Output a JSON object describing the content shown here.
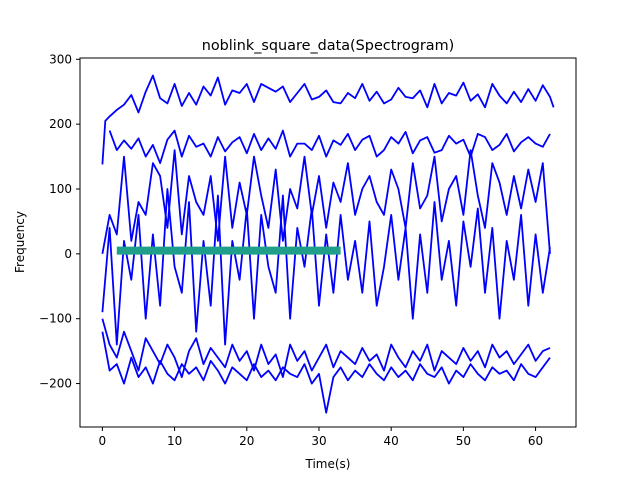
{
  "chart_data": {
    "type": "line",
    "title": "noblink_square_data(Spectrogram)",
    "xlabel": "Time(s)",
    "ylabel": "Frequency",
    "xlim": [
      -3.1,
      65.6
    ],
    "ylim": [
      -267,
      302
    ],
    "xticks": [
      0,
      10,
      20,
      30,
      40,
      50,
      60
    ],
    "yticks": [
      -200,
      -100,
      0,
      100,
      200,
      300
    ],
    "grid": false,
    "legend": "none",
    "series_colors": {
      "traces": "#0000ff",
      "band": "#1f9e89"
    },
    "series": [
      {
        "x": [
          0,
          0.4,
          1,
          2,
          3,
          4,
          5,
          6,
          7,
          8,
          9,
          10,
          11,
          12,
          13,
          14,
          15,
          16,
          17,
          18,
          19,
          20,
          21,
          22,
          23,
          24,
          25,
          26,
          27,
          28,
          29,
          30,
          31,
          32,
          33,
          34,
          35,
          36,
          37,
          38,
          39,
          40,
          41,
          42,
          43,
          44,
          45,
          46,
          47,
          48,
          49,
          50,
          51,
          52,
          53,
          54,
          55,
          56,
          57,
          58,
          59,
          60,
          61,
          62,
          62.5
        ],
        "values": [
          138,
          205,
          212,
          222,
          230,
          245,
          218,
          250,
          275,
          240,
          232,
          262,
          228,
          248,
          230,
          258,
          244,
          272,
          230,
          252,
          248,
          262,
          234,
          262,
          256,
          250,
          258,
          234,
          248,
          262,
          238,
          242,
          252,
          234,
          232,
          248,
          240,
          262,
          236,
          250,
          232,
          238,
          256,
          242,
          240,
          252,
          226,
          262,
          232,
          248,
          244,
          264,
          236,
          246,
          226,
          262,
          244,
          232,
          250,
          234,
          254,
          236,
          260,
          242,
          226
        ]
      },
      {
        "x": [
          1,
          2,
          3,
          4,
          5,
          6,
          7,
          8,
          9,
          10,
          11,
          12,
          13,
          14,
          15,
          16,
          17,
          18,
          19,
          20,
          21,
          22,
          23,
          24,
          25,
          26,
          27,
          28,
          29,
          30,
          31,
          32,
          33,
          34,
          35,
          36,
          37,
          38,
          39,
          40,
          41,
          42,
          43,
          44,
          45,
          46,
          47,
          48,
          49,
          50,
          51,
          52,
          53,
          54,
          55,
          56,
          57,
          58,
          59,
          60,
          61,
          62
        ],
        "values": [
          190,
          160,
          175,
          162,
          178,
          150,
          168,
          140,
          176,
          190,
          150,
          182,
          165,
          170,
          150,
          180,
          158,
          172,
          180,
          155,
          185,
          160,
          178,
          162,
          190,
          150,
          170,
          170,
          160,
          182,
          150,
          175,
          168,
          185,
          160,
          176,
          182,
          150,
          160,
          180,
          170,
          188,
          155,
          175,
          180,
          156,
          160,
          182,
          170,
          176,
          150,
          185,
          180,
          160,
          168,
          185,
          158,
          172,
          180,
          170,
          165,
          185
        ]
      },
      {
        "x": [
          0,
          1,
          2,
          3,
          4,
          5,
          6,
          7,
          8,
          9,
          10,
          11,
          12,
          13,
          14,
          15,
          16,
          17,
          18,
          19,
          20,
          21,
          22,
          23,
          24,
          25,
          26,
          27,
          28,
          29,
          30,
          31,
          32,
          33,
          34,
          35,
          36,
          37,
          38,
          39,
          40,
          41,
          42,
          43,
          44,
          45,
          46,
          47,
          48,
          49,
          50,
          51,
          52,
          53,
          54,
          55,
          56,
          57,
          58,
          59,
          60,
          61,
          62
        ],
        "values": [
          0,
          60,
          30,
          150,
          20,
          80,
          60,
          140,
          120,
          40,
          160,
          30,
          120,
          80,
          60,
          120,
          20,
          150,
          40,
          110,
          60,
          150,
          90,
          40,
          130,
          20,
          100,
          70,
          150,
          60,
          120,
          40,
          110,
          80,
          140,
          60,
          100,
          120,
          80,
          60,
          130,
          100,
          40,
          140,
          70,
          90,
          150,
          50,
          100,
          120,
          60,
          160,
          90,
          40,
          140,
          110,
          60,
          120,
          70,
          130,
          80,
          140,
          0
        ]
      },
      {
        "x": [
          0,
          1,
          2,
          3,
          4,
          5,
          6,
          7,
          8,
          9,
          10,
          11,
          12,
          13,
          14,
          15,
          16,
          17,
          18,
          19,
          20,
          21,
          22,
          23,
          24,
          25,
          26,
          27,
          28,
          29,
          30,
          31,
          32,
          33,
          34,
          35,
          36,
          37,
          38,
          39,
          40,
          41,
          42,
          43,
          44,
          45,
          46,
          47,
          48,
          49,
          50,
          51,
          52,
          53,
          54,
          55,
          56,
          57,
          58,
          59,
          60,
          61,
          62
        ],
        "values": [
          -90,
          40,
          -140,
          20,
          -40,
          60,
          -100,
          30,
          -80,
          100,
          -20,
          -60,
          80,
          -120,
          20,
          -80,
          90,
          -140,
          20,
          -40,
          70,
          -100,
          60,
          -20,
          -60,
          90,
          -100,
          40,
          -20,
          70,
          -80,
          30,
          -60,
          60,
          -40,
          20,
          -60,
          50,
          -80,
          -20,
          60,
          -40,
          40,
          -100,
          30,
          -60,
          80,
          -40,
          20,
          -80,
          50,
          -20,
          70,
          -60,
          40,
          -100,
          20,
          -40,
          60,
          -80,
          30,
          -60,
          10
        ]
      },
      {
        "x": [
          0,
          1,
          2,
          3,
          4,
          5,
          6,
          7,
          8,
          9,
          10,
          11,
          12,
          13,
          14,
          15,
          16,
          17,
          18,
          19,
          20,
          21,
          22,
          23,
          24,
          25,
          26,
          27,
          28,
          29,
          30,
          31,
          32,
          33,
          34,
          35,
          36,
          37,
          38,
          39,
          40,
          41,
          42,
          43,
          44,
          45,
          46,
          47,
          48,
          49,
          50,
          51,
          52,
          53,
          54,
          55,
          56,
          57,
          58,
          59,
          60,
          61,
          62
        ],
        "values": [
          -100,
          -140,
          -160,
          -120,
          -150,
          -180,
          -130,
          -150,
          -170,
          -140,
          -160,
          -190,
          -150,
          -130,
          -170,
          -145,
          -160,
          -175,
          -140,
          -165,
          -150,
          -180,
          -140,
          -170,
          -155,
          -190,
          -140,
          -165,
          -150,
          -180,
          -160,
          -140,
          -175,
          -150,
          -160,
          -170,
          -145,
          -165,
          -155,
          -180,
          -140,
          -160,
          -175,
          -150,
          -165,
          -140,
          -180,
          -150,
          -160,
          -170,
          -145,
          -165,
          -150,
          -175,
          -140,
          -160,
          -150,
          -170,
          -155,
          -140,
          -165,
          -150,
          -145
        ]
      },
      {
        "x": [
          0,
          1,
          2,
          3,
          4,
          5,
          6,
          7,
          8,
          9,
          10,
          11,
          12,
          13,
          14,
          15,
          16,
          17,
          18,
          19,
          20,
          21,
          22,
          23,
          24,
          25,
          26,
          27,
          28,
          29,
          30,
          31,
          32,
          33,
          34,
          35,
          36,
          37,
          38,
          39,
          40,
          41,
          42,
          43,
          44,
          45,
          46,
          47,
          48,
          49,
          50,
          51,
          52,
          53,
          54,
          55,
          56,
          57,
          58,
          59,
          60,
          61,
          62
        ],
        "values": [
          -120,
          -180,
          -170,
          -200,
          -160,
          -190,
          -175,
          -200,
          -165,
          -185,
          -195,
          -170,
          -185,
          -175,
          -195,
          -165,
          -180,
          -200,
          -175,
          -185,
          -195,
          -170,
          -190,
          -180,
          -195,
          -175,
          -185,
          -190,
          -170,
          -200,
          -185,
          -245,
          -190,
          -175,
          -195,
          -180,
          -190,
          -170,
          -185,
          -195,
          -175,
          -190,
          -180,
          -195,
          -170,
          -185,
          -190,
          -175,
          -200,
          -180,
          -190,
          -170,
          -185,
          -195,
          -175,
          -185,
          -180,
          -195,
          -170,
          -185,
          -190,
          -175,
          -160
        ]
      },
      {
        "x": [
          2,
          4,
          6,
          8,
          10,
          12,
          14,
          16,
          18,
          20,
          22,
          24,
          26,
          28,
          30,
          32,
          33
        ],
        "values": [
          5,
          5,
          5,
          5,
          5,
          5,
          5,
          5,
          5,
          5,
          5,
          5,
          5,
          5,
          5,
          5,
          5
        ]
      }
    ]
  }
}
